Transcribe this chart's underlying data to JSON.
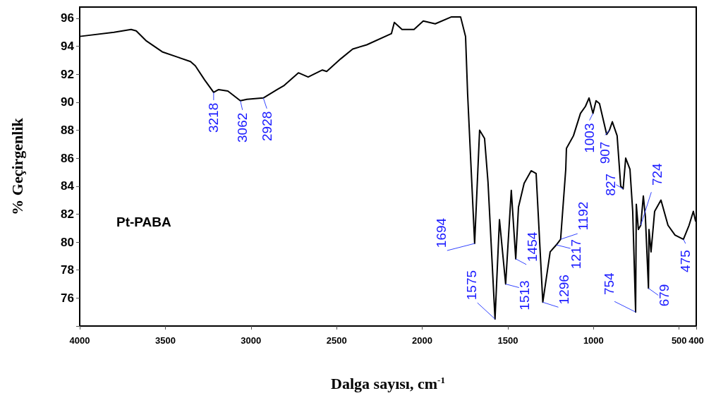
{
  "chart_data": {
    "type": "line",
    "xlabel": "Dalga sayısı, cm$^{-1}$",
    "ylabel": "% Geçirgenlik",
    "x": [
      4000,
      3800,
      3700,
      3670,
      3613,
      3518,
      3423,
      3353,
      3325,
      3271,
      3218,
      3189,
      3135,
      3062,
      3024,
      2928,
      2847,
      2806,
      2723,
      2666,
      2583,
      2558,
      2476,
      2406,
      2324,
      2180,
      2163,
      2118,
      2048,
      1994,
      1924,
      1829,
      1776,
      1747,
      1735,
      1694,
      1665,
      1636,
      1616,
      1575,
      1549,
      1513,
      1480,
      1454,
      1438,
      1405,
      1364,
      1335,
      1296,
      1253,
      1217,
      1192,
      1162,
      1158,
      1117,
      1076,
      1047,
      1026,
      1003,
      985,
      965,
      923,
      907,
      890,
      862,
      841,
      827,
      812,
      787,
      771,
      754,
      750,
      738,
      724,
      709,
      697,
      679,
      676,
      664,
      643,
      606,
      565,
      524,
      475,
      442,
      417,
      404
    ],
    "series": [
      {
        "color": "#000000",
        "values": [
          94.7,
          95.0,
          95.2,
          95.1,
          94.4,
          93.6,
          93.2,
          92.9,
          92.6,
          91.6,
          90.7,
          90.9,
          90.8,
          90.1,
          90.2,
          90.3,
          90.9,
          91.2,
          92.1,
          91.8,
          92.3,
          92.2,
          93.1,
          93.8,
          94.1,
          94.9,
          95.7,
          95.2,
          95.2,
          95.8,
          95.6,
          96.1,
          96.1,
          94.7,
          90.6,
          79.9,
          88.0,
          87.4,
          84.3,
          74.5,
          81.6,
          77.0,
          83.7,
          78.8,
          82.5,
          84.2,
          85.1,
          84.9,
          75.7,
          79.3,
          79.8,
          80.2,
          85.2,
          86.7,
          87.6,
          89.2,
          89.7,
          90.3,
          89.2,
          90.1,
          89.9,
          87.7,
          88.0,
          88.6,
          87.6,
          84.0,
          83.8,
          86.0,
          85.2,
          82.2,
          75.0,
          82.7,
          80.9,
          81.2,
          83.3,
          81.8,
          76.7,
          80.9,
          79.3,
          82.2,
          83.0,
          81.2,
          80.5,
          80.2,
          81.2,
          82.2,
          81.5
        ]
      }
    ],
    "xlim": [
      4000,
      400
    ],
    "xticks": [
      4000,
      3500,
      3000,
      2500,
      2000,
      1500,
      1000,
      500,
      400
    ],
    "ylim": [
      74,
      96.8
    ],
    "yticks": [
      {
        "value": 74,
        "label": null
      },
      76,
      78,
      80,
      82,
      84,
      86,
      88,
      90,
      92,
      94,
      96
    ],
    "grid": false,
    "marker": "none",
    "line_style": "solid",
    "annotations": [
      "Pt-PABA",
      {
        "text": "3218",
        "x": 3218,
        "y": 90.7
      },
      {
        "text": "3062",
        "x": 3062,
        "y": 90.1
      },
      {
        "text": "2928",
        "x": 2928,
        "y": 90.3
      },
      {
        "text": "1694",
        "x": 1694,
        "y": 79.9
      },
      {
        "text": "1575",
        "x": 1575,
        "y": 74.5
      },
      {
        "text": "1513",
        "x": 1513,
        "y": 77.0
      },
      {
        "text": "1454",
        "x": 1454,
        "y": 78.8
      },
      {
        "text": "1296",
        "x": 1296,
        "y": 75.7
      },
      {
        "text": "1217",
        "x": 1217,
        "y": 79.8
      },
      {
        "text": "1192",
        "x": 1192,
        "y": 80.2
      },
      {
        "text": "1003",
        "x": 1003,
        "y": 89.2
      },
      {
        "text": "907",
        "x": 907,
        "y": 88.0
      },
      {
        "text": "827",
        "x": 827,
        "y": 83.8
      },
      {
        "text": "754",
        "x": 754,
        "y": 75.0
      },
      {
        "text": "724",
        "x": 724,
        "y": 81.2
      },
      {
        "text": "679",
        "x": 679,
        "y": 76.7
      },
      {
        "text": "475",
        "x": 475,
        "y": 80.2
      }
    ]
  }
}
